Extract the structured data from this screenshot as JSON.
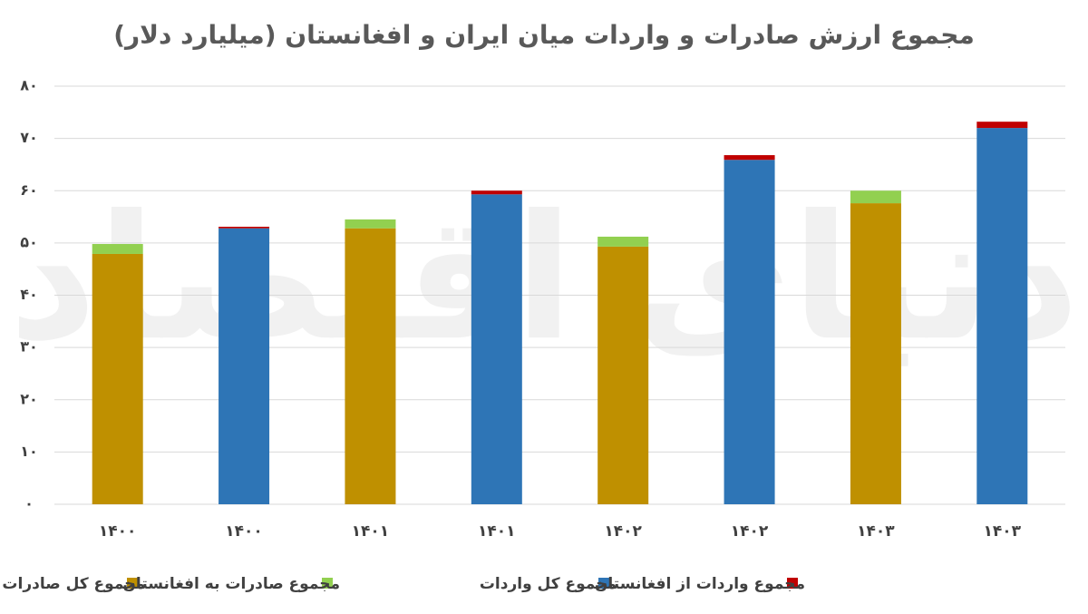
{
  "chart_data": {
    "type": "stacked_bar",
    "title": "مجموع ارزش صادرات و واردات میان ایران و افغانستان (میلیارد دلار)",
    "watermark": "دنیای اقتصاد",
    "categories": [
      "۱۴۰۰",
      "۱۴۰۰",
      "۱۴۰۱",
      "۱۴۰۱",
      "۱۴۰۲",
      "۱۴۰۲",
      "۱۴۰۳",
      "۱۴۰۳"
    ],
    "series": [
      {
        "name": "مجموع کل صادرات",
        "color": "#bf9000",
        "values": [
          47.9,
          null,
          52.8,
          null,
          49.3,
          null,
          57.6,
          null
        ]
      },
      {
        "name": "مجموع صادرات به افغانستان",
        "color": "#92d050",
        "values": [
          1.9,
          null,
          1.7,
          null,
          1.9,
          null,
          2.4,
          null
        ]
      },
      {
        "name": "مجموع کل واردات",
        "color": "#2e75b6",
        "values": [
          null,
          52.8,
          null,
          59.3,
          null,
          65.9,
          null,
          72.0
        ]
      },
      {
        "name": "مجموع واردات از افغانستان",
        "color": "#c00000",
        "values": [
          null,
          0.3,
          null,
          0.7,
          null,
          0.9,
          null,
          1.2
        ]
      }
    ],
    "ylim": [
      0,
      80
    ],
    "yticks": [
      {
        "value": 0,
        "label": "۰"
      },
      {
        "value": 10,
        "label": "۱۰"
      },
      {
        "value": 20,
        "label": "۲۰"
      },
      {
        "value": 30,
        "label": "۳۰"
      },
      {
        "value": 40,
        "label": "۴۰"
      },
      {
        "value": 50,
        "label": "۵۰"
      },
      {
        "value": 60,
        "label": "۶۰"
      },
      {
        "value": 70,
        "label": "۷۰"
      },
      {
        "value": 80,
        "label": "۸۰"
      }
    ],
    "grid": true,
    "legend": "bottom"
  }
}
